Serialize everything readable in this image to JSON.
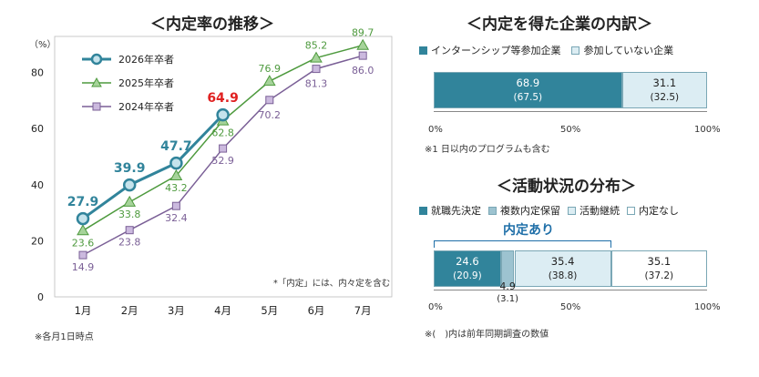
{
  "line_chart": {
    "title": "＜内定率の推移＞",
    "y_unit": "（%）",
    "note": "*「内定」には、内々定を含む",
    "footnote": "※各月1日時点"
  },
  "right_top": {
    "title": "＜内定を得た企業の内訳＞",
    "legend": [
      "インターンシップ等参加企業",
      "参加していない企業"
    ],
    "axis_ticks": [
      "0%",
      "50%",
      "100%"
    ],
    "note": "※1 日以内のプログラムも含む"
  },
  "right_bottom": {
    "title": "＜活動状況の分布＞",
    "legend": [
      "就職先決定",
      "複数内定保留",
      "活動継続",
      "内定なし"
    ],
    "bracket_label": "内定あり",
    "axis_ticks": [
      "0%",
      "50%",
      "100%"
    ],
    "note": "※(　)内は前年同期調査の数値"
  },
  "chart_data": [
    {
      "type": "line",
      "title": "＜内定率の推移＞",
      "xlabel": "",
      "ylabel": "（%）",
      "categories": [
        "1月",
        "2月",
        "3月",
        "4月",
        "5月",
        "6月",
        "7月"
      ],
      "y_ticks": [
        "0",
        "20",
        "40",
        "60",
        "80"
      ],
      "ylim": [
        0,
        90
      ],
      "series": [
        {
          "name": "2026年卒者",
          "values": [
            27.9,
            39.9,
            47.7,
            64.9,
            null,
            null,
            null
          ],
          "labels": [
            "27.9",
            "39.9",
            "47.7",
            "64.9",
            "",
            "",
            ""
          ],
          "color": "#31849b"
        },
        {
          "name": "2025年卒者",
          "values": [
            23.6,
            33.8,
            43.2,
            62.8,
            76.9,
            85.2,
            89.7
          ],
          "labels": [
            "23.6",
            "33.8",
            "43.2",
            "62.8",
            "76.9",
            "85.2",
            "89.7"
          ],
          "color": "#4e9a3e"
        },
        {
          "name": "2024年卒者",
          "values": [
            14.9,
            23.8,
            32.4,
            52.9,
            70.2,
            81.3,
            86.0
          ],
          "labels": [
            "14.9",
            "23.8",
            "32.4",
            "52.9",
            "70.2",
            "81.3",
            "86.0"
          ],
          "color": "#7a5f96"
        }
      ],
      "highlight": {
        "series": "2026年卒者",
        "index": 3,
        "color": "#e02020"
      }
    },
    {
      "type": "bar",
      "orientation": "horizontal-stacked",
      "title": "＜内定を得た企業の内訳＞",
      "categories": [
        "内定を得た企業"
      ],
      "series": [
        {
          "name": "インターンシップ等参加企業",
          "values": [
            68.9
          ],
          "labels": [
            "68.9"
          ],
          "previous": [
            "(67.5)"
          ],
          "color": "#31849b"
        },
        {
          "name": "参加していない企業",
          "values": [
            31.1
          ],
          "labels": [
            "31.1"
          ],
          "previous": [
            "(32.5)"
          ],
          "color": "#dcedf3"
        }
      ],
      "xlim": [
        0,
        100
      ]
    },
    {
      "type": "bar",
      "orientation": "horizontal-stacked",
      "title": "＜活動状況の分布＞",
      "categories": [
        "活動状況"
      ],
      "series": [
        {
          "name": "就職先決定",
          "values": [
            24.6
          ],
          "labels": [
            "24.6"
          ],
          "previous": [
            "(20.9)"
          ],
          "color": "#31849b"
        },
        {
          "name": "複数内定保留",
          "values": [
            4.9
          ],
          "labels": [
            "4.9"
          ],
          "previous": [
            "(3.1)"
          ],
          "color": "#9dc3d0"
        },
        {
          "name": "活動継続",
          "values": [
            35.4
          ],
          "labels": [
            "35.4"
          ],
          "previous": [
            "(38.8)"
          ],
          "color": "#dcedf3"
        },
        {
          "name": "内定なし",
          "values": [
            35.1
          ],
          "labels": [
            "35.1"
          ],
          "previous": [
            "(37.2)"
          ],
          "color": "#ffffff"
        }
      ],
      "xlim": [
        0,
        100
      ]
    }
  ]
}
